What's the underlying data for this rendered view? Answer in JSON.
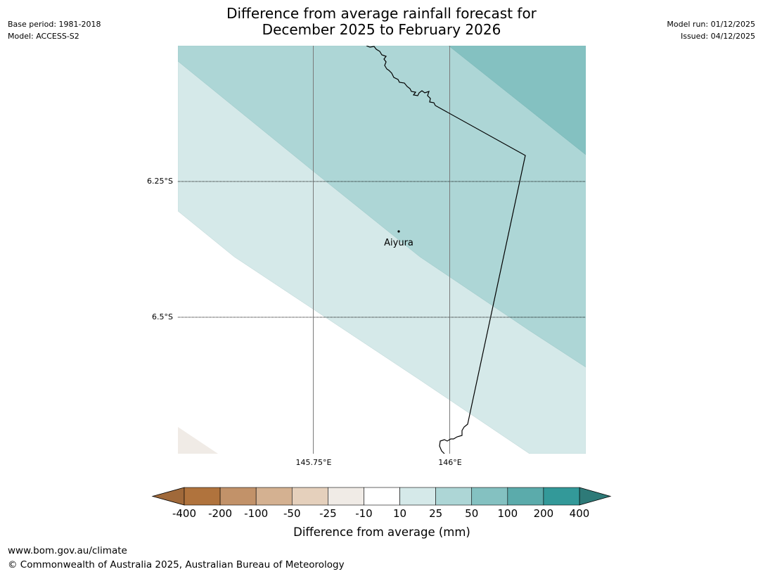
{
  "header": {
    "title_line1": "Difference from average rainfall forecast for",
    "title_line2": "December 2025 to February 2026",
    "base_period": "Base period: 1981-2018",
    "model": "Model: ACCESS-S2",
    "model_run": "Model run: 01/12/2025",
    "issued": "Issued: 04/12/2025"
  },
  "map": {
    "place_label": "Aiyura",
    "lat_labels": [
      "6.25°S",
      "6.5°S"
    ],
    "lon_labels": [
      "145.75°E",
      "146°E"
    ]
  },
  "legend": {
    "title": "Difference from average (mm)",
    "tick_labels": [
      "-400",
      "-200",
      "-100",
      "-50",
      "-25",
      "-10",
      "10",
      "25",
      "50",
      "100",
      "200",
      "400"
    ],
    "colors": [
      "#a0693a",
      "#b0733d",
      "#c29269",
      "#d4b191",
      "#e5d0bc",
      "#f0ebe6",
      "#ffffff",
      "#d5e9e9",
      "#add6d6",
      "#84c1c1",
      "#5babab",
      "#339999",
      "#2e7a78"
    ]
  },
  "footer": {
    "url": "www.bom.gov.au/climate",
    "copyright": "© Commonwealth of Australia 2025, Australian Bureau of Meteorology"
  }
}
